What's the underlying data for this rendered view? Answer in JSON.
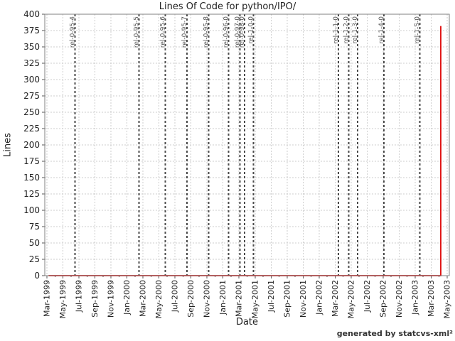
{
  "chart_data": {
    "type": "line",
    "title": "Lines Of Code for python/IPO/",
    "xlabel": "Date",
    "ylabel": "Lines",
    "ylim": [
      0,
      400
    ],
    "y_ticks": [
      0,
      25,
      50,
      75,
      100,
      125,
      150,
      175,
      200,
      225,
      250,
      275,
      300,
      325,
      350,
      375,
      400
    ],
    "x_tick_labels": [
      "Mar-1999",
      "May-1999",
      "Jul-1999",
      "Sep-1999",
      "Nov-1999",
      "Jan-2000",
      "Mar-2000",
      "May-2000",
      "Jul-2000",
      "Sep-2000",
      "Nov-2000",
      "Jan-2001",
      "Mar-2001",
      "May-2001",
      "Jul-2001",
      "Sep-2001",
      "Nov-2001",
      "Jan-2002",
      "Mar-2002",
      "May-2002",
      "Jul-2002",
      "Sep-2002",
      "Nov-2002",
      "Jan-2003",
      "Mar-2003",
      "May-2003"
    ],
    "x_tick_step_months": 2,
    "x_month_span": 50,
    "grid": true,
    "legend": "none",
    "series": [
      {
        "color": "#dd0000",
        "points": [
          {
            "month": 0.2,
            "value": 0
          },
          {
            "month": 49.2,
            "value": 0
          },
          {
            "month": 49.2,
            "value": 382
          }
        ]
      }
    ],
    "releases": [
      {
        "label": "rel-0-95-4",
        "month": 3.5
      },
      {
        "label": "rel-0-95-5",
        "month": 11.5
      },
      {
        "label": "rel-0-95-6",
        "month": 14.8
      },
      {
        "label": "rel-0-95-7",
        "month": 17.5
      },
      {
        "label": "rel-0-95-8",
        "month": 20.2
      },
      {
        "label": "rel-0-96-0",
        "month": 22.7
      },
      {
        "label": "rel-0-97-0",
        "month": 24.1
      },
      {
        "label": "rel-0-98-0",
        "month": 24.7
      },
      {
        "label": "rel-1-0-0",
        "month": 25.8
      },
      {
        "label": "rel-1-1-0",
        "month": 36.4
      },
      {
        "label": "rel-1-2-0",
        "month": 37.7
      },
      {
        "label": "rel-1-3-0",
        "month": 38.8
      },
      {
        "label": "rel-1-4-0",
        "month": 42.1
      },
      {
        "label": "rel-1-5-0",
        "month": 46.6
      }
    ]
  },
  "footer": {
    "text": "generated by statcvs-xml²"
  },
  "colors": {
    "background": "#ffffff",
    "plot_border": "#808080",
    "gridline": "#cccccc",
    "tick": "#555555",
    "tick_label": "#222222",
    "release_line": "#4a4a4a",
    "release_label": "#555555",
    "line": "#dd0000"
  }
}
